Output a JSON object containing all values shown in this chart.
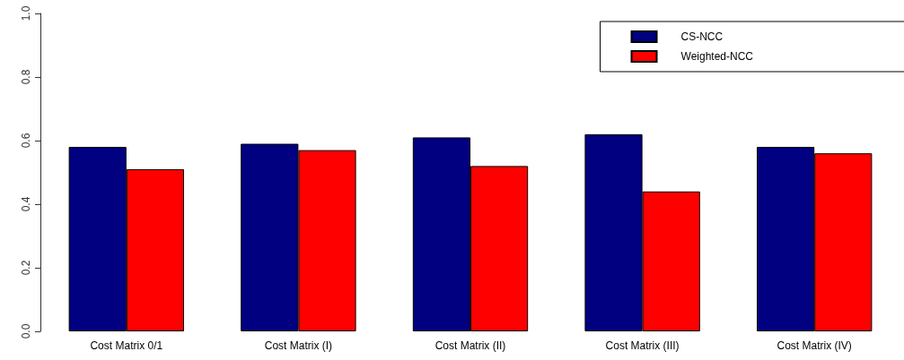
{
  "chart_data": {
    "type": "bar",
    "categories": [
      "Cost Matrix 0/1",
      "Cost Matrix (I)",
      "Cost Matrix (II)",
      "Cost Matrix (III)",
      "Cost Matrix (IV)"
    ],
    "series": [
      {
        "name": "CS-NCC",
        "color": "#000080",
        "values": [
          0.58,
          0.59,
          0.61,
          0.62,
          0.58
        ]
      },
      {
        "name": "Weighted-NCC",
        "color": "#ff0000",
        "values": [
          0.51,
          0.57,
          0.52,
          0.44,
          0.56
        ]
      }
    ],
    "ylim": [
      0,
      1
    ],
    "yticks": [
      {
        "value": 0,
        "label": "0.0"
      },
      0.2,
      0.4,
      0.6,
      0.8,
      {
        "value": 1,
        "label": "1.0"
      }
    ],
    "grid": false,
    "legend": "top right"
  }
}
